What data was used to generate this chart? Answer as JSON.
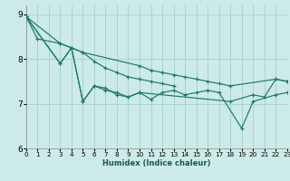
{
  "xlabel": "Humidex (Indice chaleur)",
  "xlim": [
    0,
    23
  ],
  "ylim": [
    6.0,
    9.2
  ],
  "yticks": [
    6,
    7,
    8,
    9
  ],
  "xticks": [
    0,
    1,
    2,
    3,
    4,
    5,
    6,
    7,
    8,
    9,
    10,
    11,
    12,
    13,
    14,
    15,
    16,
    17,
    18,
    19,
    20,
    21,
    22,
    23
  ],
  "bg_color": "#cceae7",
  "grid_color": "#aad4cf",
  "line_color": "#1a7a6e",
  "series": [
    {
      "x": [
        0,
        1,
        3,
        5,
        10,
        11,
        12,
        13,
        14,
        15,
        16,
        17,
        18,
        22,
        23
      ],
      "y": [
        8.95,
        8.45,
        8.35,
        8.15,
        7.85,
        7.75,
        7.7,
        7.65,
        7.6,
        7.55,
        7.5,
        7.45,
        7.4,
        7.55,
        7.5
      ]
    },
    {
      "x": [
        0,
        3,
        4,
        5,
        6,
        7,
        8,
        9,
        10,
        11,
        12,
        13,
        14,
        15,
        16,
        17,
        19,
        20,
        22,
        23
      ],
      "y": [
        8.95,
        7.9,
        8.25,
        7.05,
        7.4,
        7.3,
        7.25,
        7.15,
        7.25,
        7.1,
        7.25,
        7.3,
        7.2,
        7.25,
        7.3,
        7.25,
        6.45,
        7.05,
        7.2,
        7.25
      ]
    },
    {
      "x": [
        0,
        3,
        4,
        5,
        6,
        7,
        8,
        9,
        10,
        18,
        20,
        21,
        22,
        23
      ],
      "y": [
        8.95,
        7.9,
        8.25,
        7.05,
        7.4,
        7.35,
        7.2,
        7.15,
        7.25,
        7.05,
        7.2,
        7.15,
        7.55,
        7.5
      ]
    },
    {
      "x": [
        0,
        3,
        5,
        6,
        7,
        8,
        9,
        10,
        11,
        12,
        13
      ],
      "y": [
        8.95,
        8.35,
        8.15,
        7.95,
        7.8,
        7.7,
        7.6,
        7.55,
        7.5,
        7.45,
        7.4
      ]
    }
  ]
}
